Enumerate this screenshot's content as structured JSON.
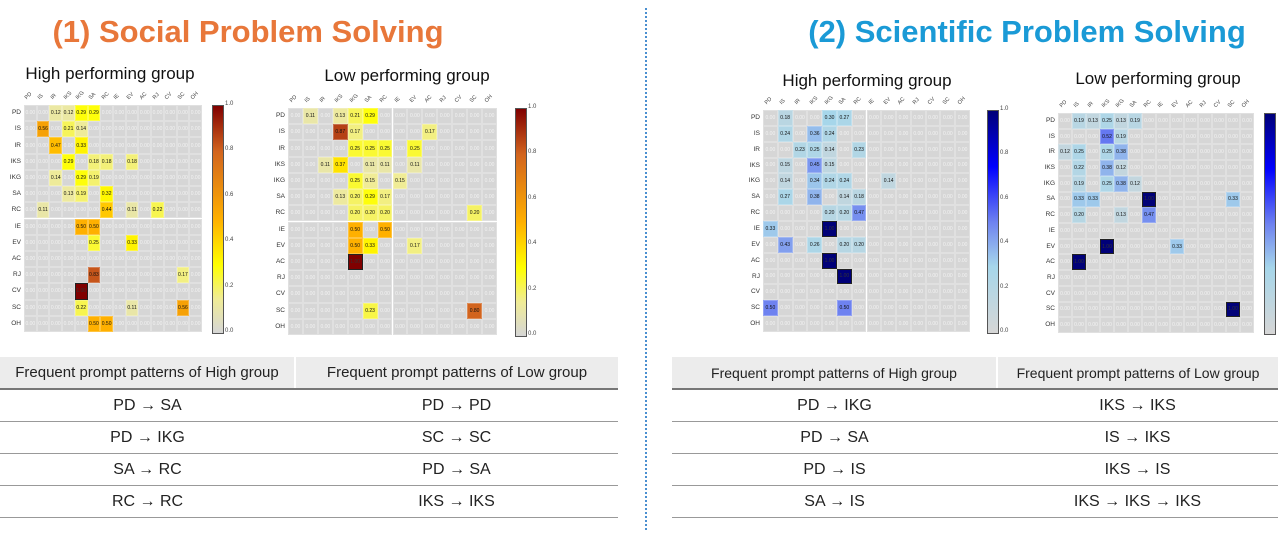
{
  "sections": [
    {
      "title": "(1) Social Problem Solving",
      "color": "#e8773a",
      "table": {
        "headers": [
          "Frequent prompt patterns of High group",
          "Frequent prompt patterns of Low group"
        ],
        "rows": [
          [
            "PD → SA",
            "PD → PD"
          ],
          [
            "PD → IKG",
            "SC → SC"
          ],
          [
            "SA → RC",
            "PD → SA"
          ],
          [
            "RC → RC",
            "IKS → IKS"
          ]
        ]
      }
    },
    {
      "title": "(2) Scientific Problem Solving",
      "color": "#1a9ad6",
      "table": {
        "headers": [
          "Frequent prompt patterns of High group",
          "Frequent prompt patterns of Low group"
        ],
        "rows": [
          [
            "PD → IKG",
            "IKS → IKS"
          ],
          [
            "PD →  SA",
            "IS → IKS"
          ],
          [
            "PD → IS",
            "IKS → IS"
          ],
          [
            "SA → IS",
            "IKS → IKS → IKS"
          ]
        ]
      }
    }
  ],
  "chart_data": [
    {
      "type": "heatmap",
      "title": "High performing group",
      "colormap": "hot",
      "colorbar_ticks": [
        "1.0",
        "0.8",
        "0.6",
        "0.4",
        "0.2",
        "0.0"
      ],
      "range": [
        0,
        1
      ],
      "labels": [
        "PD",
        "IS",
        "IR",
        "IKS",
        "IKG",
        "SA",
        "RC",
        "IE",
        "EV",
        "AC",
        "RJ",
        "CV",
        "SC",
        "OH"
      ],
      "cells": {
        "PD": {
          "IR": 0.12,
          "IKS": 0.12,
          "IKG": 0.29,
          "SA": 0.29
        },
        "IS": {
          "IS": 0.56,
          "IKS": 0.21,
          "IKG": 0.14
        },
        "IR": {
          "IR": 0.47,
          "IKG": 0.33
        },
        "IKS": {
          "IKS": 0.29,
          "SA": 0.18,
          "RC": 0.18,
          "EV": 0.18
        },
        "IKG": {
          "IR": 0.14,
          "IKG": 0.29,
          "SA": 0.19
        },
        "SA": {
          "IKS": 0.13,
          "IKG": 0.19,
          "RC": 0.32
        },
        "RC": {
          "IS": 0.11,
          "RC": 0.44,
          "EV": 0.11,
          "RJ": 0.22
        },
        "IE": {
          "IKG": 0.5,
          "SA": 0.5
        },
        "EV": {
          "SA": 0.25,
          "EV": 0.33
        },
        "RJ": {
          "SA": 0.83,
          "SC": 0.17
        },
        "CV": {
          "IKG": 1.0
        },
        "SC": {
          "IKG": 0.22,
          "EV": 0.11,
          "SC": 0.56
        },
        "OH": {
          "SA": 0.5,
          "RC": 0.5
        }
      }
    },
    {
      "type": "heatmap",
      "title": "Low performing group",
      "colormap": "hot",
      "colorbar_ticks": [
        "1.0",
        "0.8",
        "0.6",
        "0.4",
        "0.2",
        "0.0"
      ],
      "range": [
        0,
        1
      ],
      "labels": [
        "PD",
        "IS",
        "IR",
        "IKS",
        "IKG",
        "SA",
        "RC",
        "IE",
        "EV",
        "AC",
        "RJ",
        "CV",
        "SC",
        "OH"
      ],
      "cells": {
        "PD": {
          "IS": 0.11,
          "IKS": 0.13,
          "IKG": 0.21,
          "SA": 0.29
        },
        "IS": {
          "IKS": 0.87,
          "IKG": 0.17,
          "AC": 0.17
        },
        "IR": {
          "IKG": 0.25,
          "SA": 0.25,
          "RC": 0.25,
          "EV": 0.25
        },
        "IKS": {
          "IR": 0.11,
          "IKS": 0.37,
          "SA": 0.11,
          "RC": 0.11,
          "EV": 0.11
        },
        "IKG": {
          "IKG": 0.25,
          "SA": 0.15,
          "IE": 0.15
        },
        "SA": {
          "IKS": 0.13,
          "IKG": 0.2,
          "SA": 0.29,
          "RC": 0.17
        },
        "RC": {
          "IKG": 0.2,
          "SA": 0.2,
          "RC": 0.2,
          "SC": 0.2
        },
        "IE": {
          "IKG": 0.5,
          "RC": 0.5
        },
        "EV": {
          "IKG": 0.5,
          "SA": 0.33,
          "EV": 0.17
        },
        "AC": {
          "IKG": 1.0
        },
        "SC": {
          "SA": 0.23,
          "SC": 0.8
        }
      }
    },
    {
      "type": "heatmap",
      "title": "High performing group",
      "colormap": "blue",
      "colorbar_ticks": [
        "1.0",
        "0.8",
        "0.6",
        "0.4",
        "0.2",
        "0.0"
      ],
      "range": [
        0,
        1
      ],
      "labels": [
        "PD",
        "IS",
        "IR",
        "IKS",
        "IKG",
        "SA",
        "RC",
        "IE",
        "EV",
        "AC",
        "RJ",
        "CV",
        "SC",
        "OH"
      ],
      "cells": {
        "PD": {
          "IS": 0.18,
          "IKG": 0.3,
          "SA": 0.27
        },
        "IS": {
          "IS": 0.24,
          "IKS": 0.36,
          "IKG": 0.24
        },
        "IR": {
          "IR": 0.23,
          "IKS": 0.25,
          "IKG": 0.14,
          "RC": 0.23
        },
        "IKS": {
          "IS": 0.15,
          "IKS": 0.45,
          "IKG": 0.15
        },
        "IKG": {
          "IS": 0.14,
          "IKS": 0.34,
          "IKG": 0.24,
          "SA": 0.24,
          "EV": 0.14
        },
        "SA": {
          "IS": 0.27,
          "IKS": 0.38,
          "SA": 0.14,
          "RC": 0.18
        },
        "RC": {
          "IKG": 0.2,
          "SA": 0.2,
          "RC": 0.47
        },
        "IE": {
          "PD": 0.33,
          "IKG": 1.0
        },
        "EV": {
          "IS": 0.43,
          "IKS": 0.26,
          "SA": 0.2,
          "RC": 0.2
        },
        "AC": {
          "IKG": 1.0
        },
        "RJ": {
          "SA": 1.0
        },
        "SC": {
          "PD": 0.5,
          "SA": 0.5
        }
      }
    },
    {
      "type": "heatmap",
      "title": "Low performing group",
      "colormap": "blue",
      "colorbar_ticks": [],
      "range": [
        0,
        1
      ],
      "labels": [
        "PD",
        "IS",
        "IR",
        "IKS",
        "IKG",
        "SA",
        "RC",
        "IE",
        "EV",
        "AC",
        "RJ",
        "CV",
        "SC",
        "OH"
      ],
      "cells": {
        "PD": {
          "IS": 0.19,
          "IR": 0.13,
          "IKS": 0.25,
          "IKG": 0.13,
          "SA": 0.19
        },
        "IS": {
          "IKS": 0.52,
          "IKG": 0.19
        },
        "IR": {
          "PD": 0.12,
          "IS": 0.25,
          "IKS": 0.25,
          "IKG": 0.38
        },
        "IKS": {
          "IS": 0.22,
          "IKS": 0.38,
          "IKG": 0.12
        },
        "IKG": {
          "IS": 0.19,
          "IKS": 0.25,
          "IKG": 0.38,
          "SA": 0.12
        },
        "SA": {
          "IS": 0.33,
          "IR": 0.33,
          "RC": 1.0,
          "SC": 0.33
        },
        "RC": {
          "IS": 0.2,
          "IKG": 0.13,
          "RC": 0.47
        },
        "EV": {
          "IKS": 1.0,
          "EV": 0.33
        },
        "AC": {
          "IS": 1.0
        },
        "SC": {
          "SC": 1.0
        }
      }
    }
  ]
}
